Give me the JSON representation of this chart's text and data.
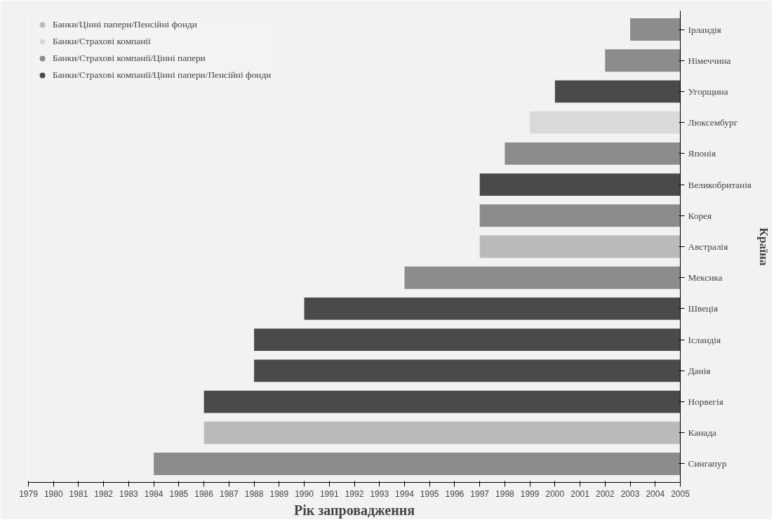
{
  "chart_data": {
    "type": "bar",
    "orientation": "horizontal",
    "xlabel": "Рік запровадження",
    "ylabel": "Країна",
    "categories": [
      "Ірландія",
      "Німеччина",
      "Угорщина",
      "Люксембург",
      "Японія",
      "Великобританія",
      "Корея",
      "Австралія",
      "Мексика",
      "Швеція",
      "Ісландія",
      "Данія",
      "Норвегія",
      "Канада",
      "Сингапур"
    ],
    "series": [
      {
        "name": "Банки/Цінні папери/Пенсійні фонди",
        "color": "#bababa",
        "base": [
          null,
          null,
          null,
          null,
          null,
          null,
          null,
          1997,
          null,
          null,
          null,
          null,
          null,
          1986,
          null
        ],
        "values": [
          null,
          null,
          null,
          null,
          null,
          null,
          null,
          8,
          null,
          null,
          null,
          null,
          null,
          19,
          null
        ]
      },
      {
        "name": "Банки/Страхові компанії",
        "color": "#d9d9d9",
        "base": [
          null,
          null,
          null,
          1999,
          null,
          null,
          null,
          null,
          null,
          null,
          null,
          null,
          null,
          null,
          null
        ],
        "values": [
          null,
          null,
          null,
          6,
          null,
          null,
          null,
          null,
          null,
          null,
          null,
          null,
          null,
          null,
          null
        ]
      },
      {
        "name": "Банки/Страхові компанії/Цінні папери",
        "color": "#8c8c8c",
        "base": [
          2003,
          2002,
          null,
          null,
          1998,
          null,
          1997,
          null,
          1994,
          null,
          null,
          null,
          null,
          null,
          1984
        ],
        "values": [
          2,
          3,
          null,
          null,
          7,
          null,
          8,
          null,
          11,
          null,
          null,
          null,
          null,
          null,
          21
        ]
      },
      {
        "name": "Банки/Страхові компанії/Цінні папери/Пенсійні фонди",
        "color": "#4a4a4a",
        "base": [
          null,
          null,
          2000,
          null,
          null,
          1997,
          null,
          null,
          null,
          1990,
          1988,
          1988,
          1986,
          null,
          null
        ],
        "values": [
          null,
          null,
          5,
          null,
          null,
          8,
          null,
          null,
          null,
          15,
          17,
          17,
          19,
          null,
          null
        ]
      }
    ],
    "xlim": [
      1979,
      2005
    ],
    "xticks": [
      1979,
      1980,
      1981,
      1982,
      1983,
      1984,
      1985,
      1986,
      1987,
      1988,
      1989,
      1990,
      1991,
      1992,
      1993,
      1994,
      1995,
      1996,
      1997,
      1998,
      1999,
      2000,
      2001,
      2002,
      2003,
      2004,
      2005
    ],
    "legend": "top left",
    "grid": false
  }
}
